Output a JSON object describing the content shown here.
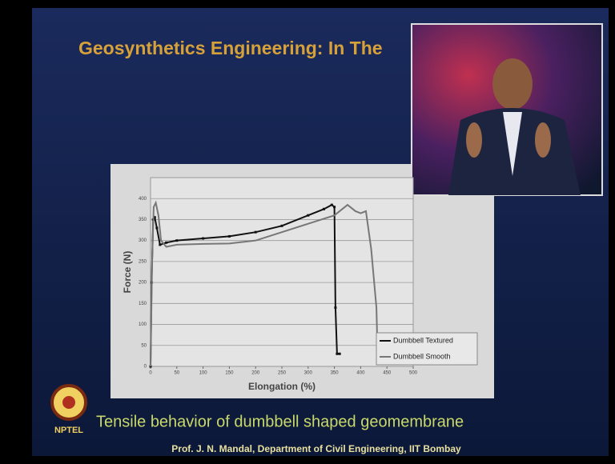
{
  "slide": {
    "title": "Geosynthetics Engineering: In The",
    "caption": "Tensile behavior of dumbbell shaped geomembrane",
    "footer": "Prof. J. N. Mandal, Department of Civil Engineering, IIT Bombay",
    "logo": "NPTEL"
  },
  "chart_data": {
    "type": "line",
    "ylabel": "Force (N)",
    "xlabel": "Elongation (%)",
    "xlim": [
      0,
      500
    ],
    "ylim": [
      0,
      450
    ],
    "xticks": [
      0,
      50,
      100,
      150,
      200,
      250,
      300,
      350,
      400,
      450,
      500
    ],
    "yticks": [
      0,
      50,
      100,
      150,
      200,
      250,
      300,
      350,
      400
    ],
    "grid": true,
    "legend": "lower right",
    "series": [
      {
        "name": "Dumbbell Textured",
        "color": "#111111",
        "markers": true,
        "x": [
          0,
          2,
          5,
          8,
          12,
          18,
          30,
          50,
          100,
          150,
          200,
          250,
          300,
          330,
          345,
          350,
          352,
          355,
          360
        ],
        "values": [
          0,
          200,
          350,
          355,
          330,
          290,
          295,
          300,
          305,
          310,
          320,
          335,
          360,
          375,
          385,
          380,
          140,
          30,
          30
        ]
      },
      {
        "name": "Dumbbell Smooth",
        "color": "#777777",
        "markers": false,
        "x": [
          0,
          3,
          6,
          10,
          15,
          20,
          30,
          50,
          100,
          150,
          200,
          250,
          300,
          350,
          375,
          390,
          400,
          410,
          420,
          430,
          432,
          440
        ],
        "values": [
          0,
          250,
          380,
          390,
          360,
          300,
          285,
          290,
          292,
          293,
          300,
          320,
          340,
          360,
          385,
          370,
          365,
          370,
          280,
          140,
          40,
          40
        ]
      }
    ]
  }
}
